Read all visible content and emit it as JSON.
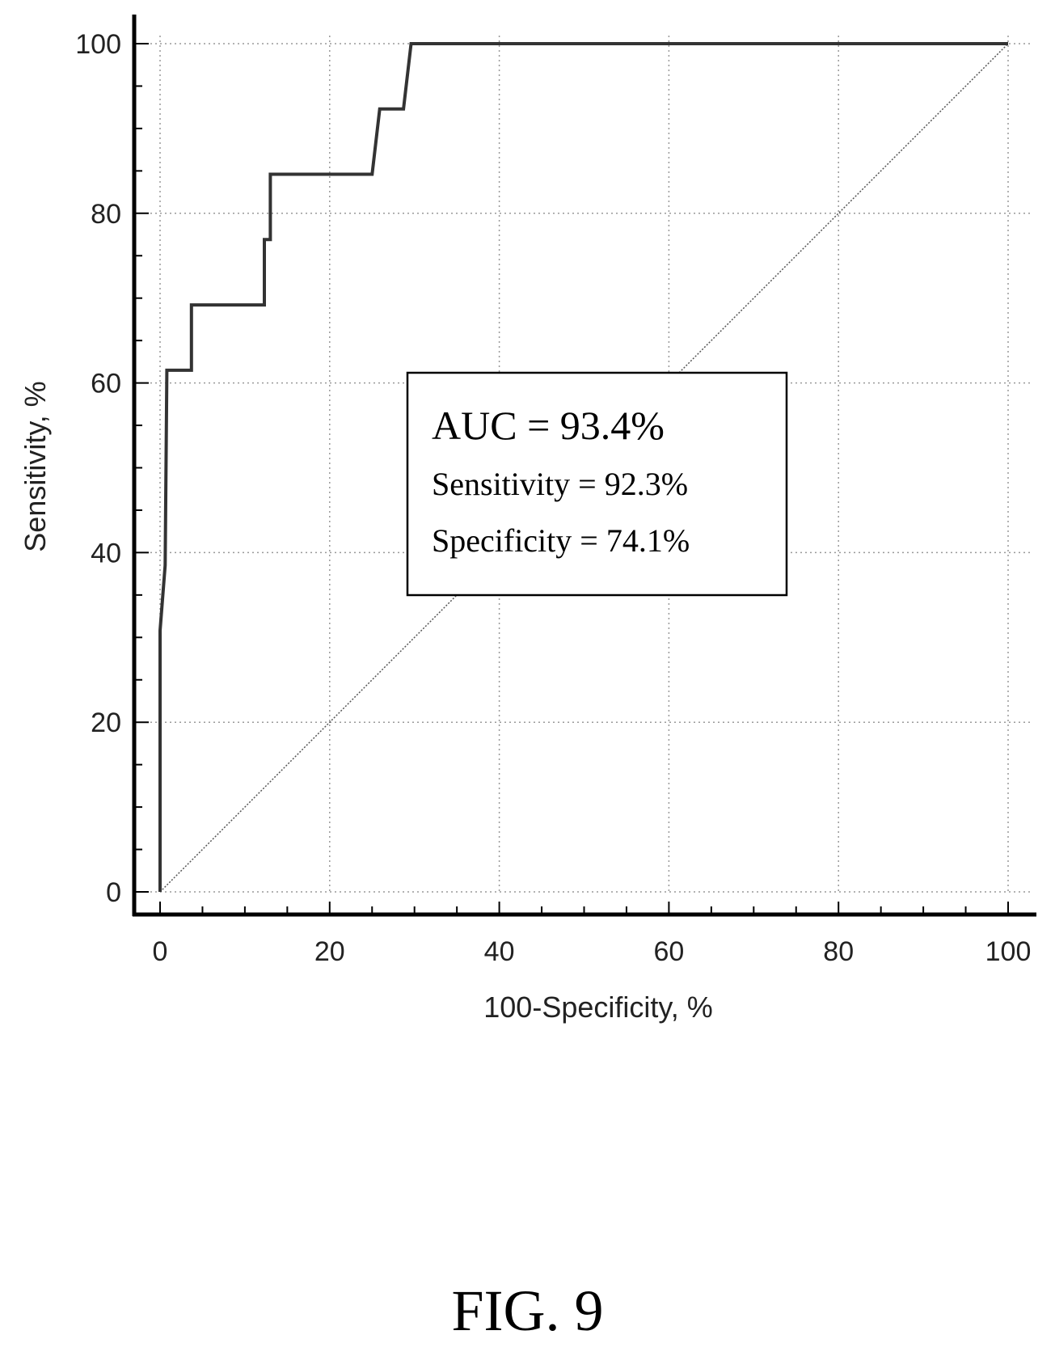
{
  "chart_data": {
    "type": "line",
    "xlabel": "100-Specificity, %",
    "ylabel": "Sensitivity, %",
    "xlim": [
      0,
      100
    ],
    "ylim": [
      0,
      100
    ],
    "x_ticks": [
      "0",
      "20",
      "40",
      "60",
      "80",
      "100"
    ],
    "y_ticks": [
      "0",
      "20",
      "40",
      "60",
      "80",
      "100"
    ],
    "grid": true,
    "series": [
      {
        "x": [
          0,
          0,
          0.3,
          0.6,
          0.8,
          0.8,
          3.7,
          3.7,
          12.3,
          12.3,
          13.0,
          13.0,
          25.0,
          25.9,
          27.8,
          28.7,
          29.6,
          100
        ],
        "y": [
          0,
          30.8,
          34.6,
          38.5,
          61.5,
          61.5,
          61.5,
          69.2,
          69.2,
          76.9,
          76.9,
          84.6,
          84.6,
          92.3,
          92.3,
          92.3,
          100,
          100
        ]
      },
      {
        "x": [
          0,
          100
        ],
        "y": [
          0,
          100
        ]
      }
    ],
    "annotations": [
      "AUC = 93.4%",
      "Sensitivity = 92.3%",
      "Specificity = 74.1%"
    ]
  },
  "caption": "FIG. 9"
}
